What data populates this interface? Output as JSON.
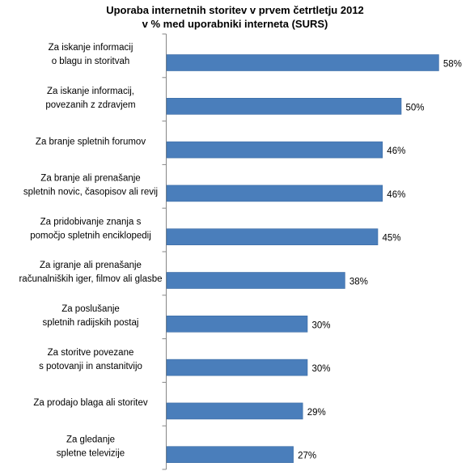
{
  "chart_data": {
    "type": "bar",
    "orientation": "horizontal",
    "title": "Uporaba internetnih storitev v prvem četrtletju 2012",
    "subtitle": "v % med uporabniki interneta (SURS)",
    "categories": [
      [
        "Za iskanje informacij",
        "o blagu in storitvah"
      ],
      [
        "Za iskanje informacij,",
        "povezanih z zdravjem"
      ],
      [
        "Za branje spletnih forumov"
      ],
      [
        "Za branje ali prenašanje",
        "spletnih novic, časopisov ali revij"
      ],
      [
        "Za pridobivanje znanja s",
        "pomočjo spletnih enciklopedij"
      ],
      [
        "Za igranje ali prenašanje",
        "računalniških iger, filmov ali glasbe"
      ],
      [
        "Za poslušanje",
        "spletnih radijskih postaj"
      ],
      [
        "Za storitve povezane",
        "s potovanji in anstanitvijo"
      ],
      [
        "Za prodajo blaga ali storitev"
      ],
      [
        "Za gledanje",
        "spletne televizije"
      ]
    ],
    "values": [
      58,
      50,
      46,
      46,
      45,
      38,
      30,
      30,
      29,
      27
    ],
    "data_labels": [
      "58%",
      "50%",
      "46%",
      "46%",
      "45%",
      "38%",
      "30%",
      "30%",
      "29%",
      "27%"
    ],
    "xlim": [
      0,
      60
    ],
    "grid": false,
    "legend": "none",
    "bar_color": "#4a7ebb"
  }
}
